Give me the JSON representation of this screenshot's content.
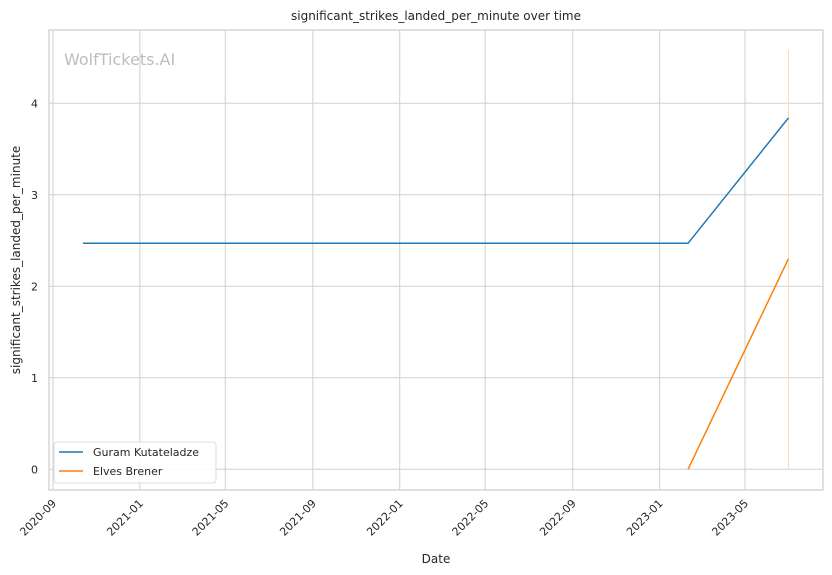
{
  "chart_data": {
    "type": "line",
    "title": "significant_strikes_landed_per_minute over time",
    "xlabel": "Date",
    "ylabel": "significant_strikes_landed_per_minute",
    "watermark": "WolfTickets.AI",
    "xlim": [
      "2020-08-25",
      "2023-08-15"
    ],
    "ylim": [
      -0.23,
      4.8
    ],
    "x_ticks": [
      "2020-09",
      "2021-01",
      "2021-05",
      "2021-09",
      "2022-01",
      "2022-05",
      "2022-09",
      "2023-01",
      "2023-05"
    ],
    "y_ticks": [
      0,
      1,
      2,
      3,
      4
    ],
    "grid": true,
    "legend_position": "lower-left",
    "series": [
      {
        "name": "Guram Kutateladze",
        "color": "#1f77b4",
        "x": [
          "2020-10-13",
          "2023-02-10",
          "2023-07-01"
        ],
        "y": [
          2.47,
          2.47,
          3.84
        ]
      },
      {
        "name": "Elves Brener",
        "color": "#ff7f0e",
        "x": [
          "2023-02-10",
          "2023-07-01"
        ],
        "y": [
          0,
          2.3
        ]
      }
    ],
    "vline": {
      "x": "2023-07-01",
      "y": [
        0,
        4.58
      ],
      "color": "#ffd8b0"
    }
  }
}
